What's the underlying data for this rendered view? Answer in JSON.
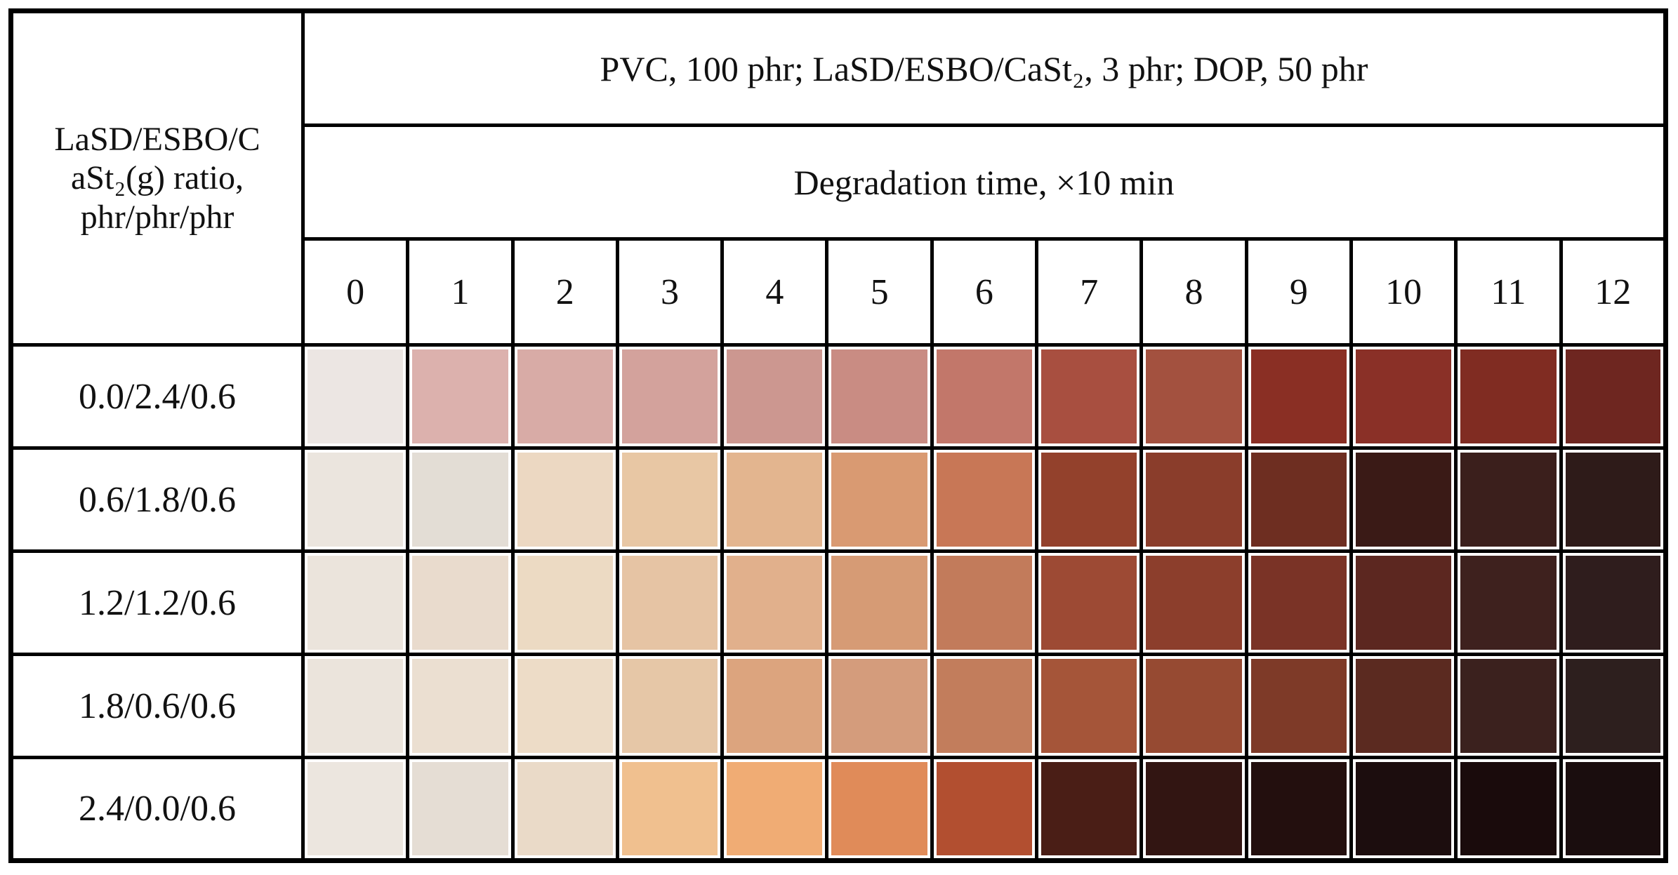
{
  "header": {
    "title": "PVC, 100 phr; LaSD/ESBO/CaSt₂, 3 phr; DOP, 50 phr",
    "subtitle": "Degradation time, ×10 min",
    "row_header": [
      "LaSD/ESBO/C",
      "aSt₂(g) ratio,",
      "phr/phr/phr"
    ]
  },
  "table": {
    "columns": [
      0,
      1,
      2,
      3,
      4,
      5,
      6,
      7,
      8,
      9,
      10,
      11,
      12
    ],
    "rows": [
      "0.0/2.4/0.6",
      "0.6/1.8/0.6",
      "1.2/1.2/0.6",
      "1.8/0.6/0.6",
      "2.4/0.0/0.6"
    ]
  }
}
